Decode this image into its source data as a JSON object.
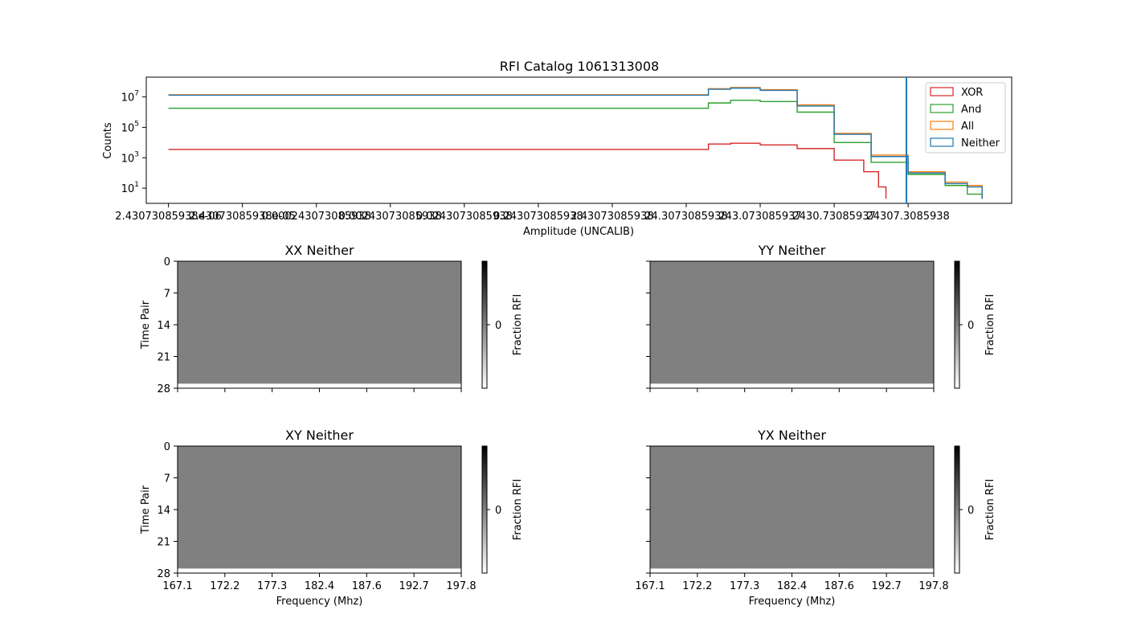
{
  "figure_title": "RFI Catalog 1061313008",
  "chart_data": [
    {
      "type": "line",
      "drawstyle": "steps",
      "title": "RFI Catalog 1061313008",
      "xlabel": "Amplitude (UNCALIB)",
      "ylabel": "Counts",
      "yscale": "log",
      "ylim": [
        1,
        200000000
      ],
      "y_tick_labels": [
        {
          "base": "10",
          "exp": "1",
          "value": 10
        },
        {
          "base": "10",
          "exp": "3",
          "value": 1000
        },
        {
          "base": "10",
          "exp": "5",
          "value": 100000
        },
        {
          "base": "10",
          "exp": "7",
          "value": 10000000
        }
      ],
      "x_tick_labels": [
        "2.43073085938e-06",
        "2.43073085938e-05",
        "0.000243073085938",
        "0.00243073085938",
        "0.0243073085938",
        "0.243073085938",
        "2.43073085938",
        "24.3073085938",
        "243.073085937",
        "2430.73085937",
        "24307.3085938"
      ],
      "x_tick_label_texts_as_rendered": [
        "2.43073085938e-06",
        "2.43073085938e-05",
        "0.000243073085938",
        "0.00243073085938",
        "0.0243073085938",
        "0.243073085938",
        "2.43073085938",
        "24.3073085938",
        "243.073085937",
        "2430.73085937",
        "24307.3085938"
      ],
      "legend_position": "upper-right",
      "cutoff_line_present": true,
      "series": [
        {
          "name": "XOR",
          "color": "#d62728",
          "x": [
            -6,
            1,
            1.3,
            1.6,
            2,
            2.5,
            3,
            3.4,
            3.6,
            3.7
          ],
          "y": [
            3500,
            3500,
            8000,
            9000,
            7000,
            4000,
            700,
            120,
            12,
            2
          ]
        },
        {
          "name": "And",
          "color": "#2ca02c",
          "x": [
            -6,
            1,
            1.3,
            1.6,
            2,
            2.5,
            3,
            3.5,
            4,
            4.5,
            4.8,
            5
          ],
          "y": [
            1800000,
            1800000,
            4000000,
            6000000,
            5000000,
            1000000,
            10000,
            500,
            80,
            15,
            4,
            2
          ]
        },
        {
          "name": "All",
          "color": "#ff7f0e",
          "x": [
            -6,
            1,
            1.3,
            1.6,
            2,
            2.5,
            3,
            3.5,
            4,
            4.5,
            4.8,
            5
          ],
          "y": [
            14000000,
            14000000,
            35000000,
            42000000,
            30000000,
            3000000,
            40000,
            1500,
            120,
            25,
            15,
            2
          ]
        },
        {
          "name": "Neither",
          "color": "#1f77b4",
          "x": [
            -6,
            1,
            1.3,
            1.6,
            2,
            2.5,
            3,
            3.5,
            4,
            4.5,
            4.8,
            5
          ],
          "y": [
            13000000,
            13000000,
            32000000,
            38000000,
            27000000,
            2500000,
            35000,
            1200,
            100,
            20,
            12,
            2
          ]
        }
      ]
    },
    {
      "type": "heatmap",
      "title": "XX Neither",
      "ylabel": "Time Pair",
      "colorbar_label": "Fraction RFI",
      "colorbar_tick": "0",
      "y_tick_labels": [
        "0",
        "7",
        "14",
        "21",
        "28"
      ],
      "value": 0,
      "shape_rows": 27
    },
    {
      "type": "heatmap",
      "title": "YY Neither",
      "colorbar_label": "Fraction RFI",
      "colorbar_tick": "0",
      "value": 0,
      "shape_rows": 27
    },
    {
      "type": "heatmap",
      "title": "XY Neither",
      "ylabel": "Time Pair",
      "xlabel": "Frequency (Mhz)",
      "colorbar_label": "Fraction RFI",
      "colorbar_tick": "0",
      "y_tick_labels": [
        "0",
        "7",
        "14",
        "21",
        "28"
      ],
      "x_tick_labels": [
        "167.1",
        "172.2",
        "177.3",
        "182.4",
        "187.6",
        "192.7",
        "197.8"
      ],
      "value": 0,
      "shape_rows": 27
    },
    {
      "type": "heatmap",
      "title": "YX Neither",
      "xlabel": "Frequency (Mhz)",
      "colorbar_label": "Fraction RFI",
      "colorbar_tick": "0",
      "x_tick_labels": [
        "167.1",
        "172.2",
        "177.3",
        "182.4",
        "187.6",
        "192.7",
        "197.8"
      ],
      "value": 0,
      "shape_rows": 27
    }
  ],
  "colors": {
    "heatmap_fill": "#808080",
    "axes": "#000000",
    "cutoff_line": "#1f77b4"
  }
}
